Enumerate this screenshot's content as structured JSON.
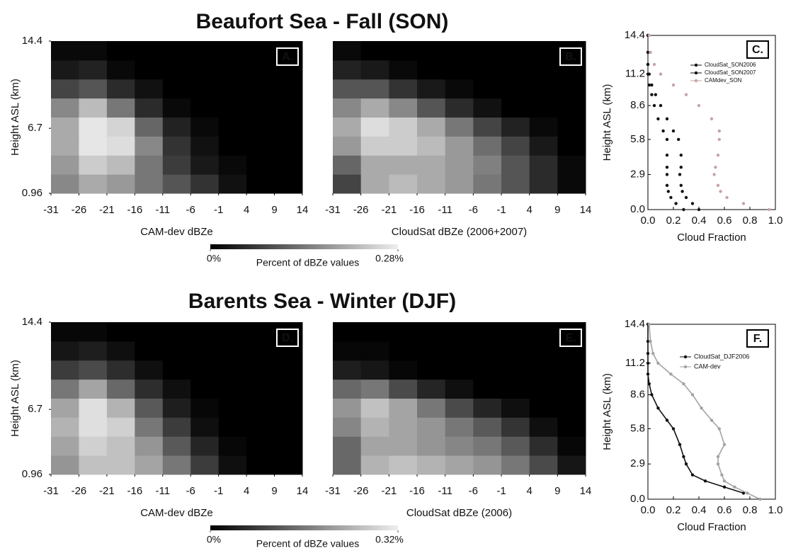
{
  "figure": {
    "rows": [
      {
        "title": "Beaufort Sea - Fall (SON)",
        "colorbar": {
          "label": "Percent of dBZe values",
          "ticks": [
            {
              "value": 0,
              "label": "0%"
            },
            {
              "value": 0.28,
              "label": "0.28%"
            }
          ]
        }
      },
      {
        "title": "Barents Sea - Winter (DJF)",
        "colorbar": {
          "label": "Percent of dBZe values",
          "ticks": [
            {
              "value": 0,
              "label": "0%"
            },
            {
              "value": 0.32,
              "label": "0.32%"
            }
          ]
        }
      }
    ]
  },
  "chart_data": [
    {
      "type": "heatmap",
      "panel": "A.",
      "xlabel": "CAM-dev dBZe",
      "ylabel": "Height ASL (km)",
      "xlim": [
        -31,
        14
      ],
      "xticks": [
        -31,
        -26,
        -21,
        -16,
        -11,
        -6,
        -1,
        4,
        9,
        14
      ],
      "ylim": [
        0.96,
        14.4
      ],
      "yticks": [
        0.96,
        6.7,
        14.4
      ],
      "zlim": [
        0,
        0.28
      ],
      "xbins": [
        -31,
        -26,
        -21,
        -16,
        -11,
        -6,
        -1,
        4,
        9,
        14
      ],
      "ybins": [
        0.96,
        2.64,
        4.32,
        6.0,
        7.68,
        9.36,
        11.04,
        12.72,
        14.4
      ],
      "z": [
        [
          0.16,
          0.2,
          0.18,
          0.14,
          0.1,
          0.06,
          0.02,
          0,
          0
        ],
        [
          0.18,
          0.24,
          0.22,
          0.14,
          0.07,
          0.03,
          0.01,
          0,
          0
        ],
        [
          0.2,
          0.27,
          0.26,
          0.16,
          0.06,
          0.02,
          0,
          0,
          0
        ],
        [
          0.2,
          0.27,
          0.25,
          0.12,
          0.04,
          0.01,
          0,
          0,
          0
        ],
        [
          0.16,
          0.22,
          0.14,
          0.05,
          0.01,
          0,
          0,
          0,
          0
        ],
        [
          0.08,
          0.1,
          0.05,
          0.02,
          0,
          0,
          0,
          0,
          0
        ],
        [
          0.03,
          0.04,
          0.01,
          0,
          0,
          0,
          0,
          0,
          0
        ],
        [
          0.01,
          0.01,
          0,
          0,
          0,
          0,
          0,
          0,
          0
        ]
      ]
    },
    {
      "type": "heatmap",
      "panel": "B.",
      "xlabel": "CloudSat dBZe (2006+2007)",
      "xlim": [
        -31,
        14
      ],
      "xticks": [
        -31,
        -26,
        -21,
        -16,
        -11,
        -6,
        -1,
        4,
        9,
        14
      ],
      "ylim": [
        0.96,
        14.4
      ],
      "zlim": [
        0,
        0.28
      ],
      "xbins": [
        -31,
        -26,
        -21,
        -16,
        -11,
        -6,
        -1,
        4,
        9,
        14
      ],
      "ybins": [
        0.96,
        2.64,
        4.32,
        6.0,
        7.68,
        9.36,
        11.04,
        12.72,
        14.4
      ],
      "z": [
        [
          0.08,
          0.2,
          0.22,
          0.2,
          0.18,
          0.14,
          0.1,
          0.05,
          0.01
        ],
        [
          0.12,
          0.2,
          0.2,
          0.2,
          0.18,
          0.15,
          0.1,
          0.05,
          0.01
        ],
        [
          0.18,
          0.24,
          0.24,
          0.22,
          0.18,
          0.13,
          0.08,
          0.03,
          0
        ],
        [
          0.2,
          0.26,
          0.24,
          0.2,
          0.14,
          0.08,
          0.04,
          0.01,
          0
        ],
        [
          0.16,
          0.2,
          0.16,
          0.1,
          0.05,
          0.02,
          0,
          0,
          0
        ],
        [
          0.1,
          0.1,
          0.06,
          0.03,
          0.01,
          0,
          0,
          0,
          0
        ],
        [
          0.04,
          0.03,
          0.01,
          0,
          0,
          0,
          0,
          0,
          0
        ],
        [
          0.01,
          0,
          0,
          0,
          0,
          0,
          0,
          0,
          0
        ]
      ]
    },
    {
      "type": "scatter",
      "panel": "C.",
      "xlabel": "Cloud Fraction",
      "ylabel": "Height ASL (km)",
      "legend": "upper right",
      "xlim": [
        0,
        1
      ],
      "xticks": [
        {
          "value": 0,
          "label": "0.0"
        },
        0.2,
        0.4,
        0.6,
        0.8,
        {
          "value": 1,
          "label": "1.0"
        }
      ],
      "ylim": [
        0,
        14.4
      ],
      "yticks": [
        {
          "value": 0,
          "label": "0.0"
        },
        2.9,
        5.8,
        8.6,
        11.2,
        14.4
      ],
      "heights": [
        0.0,
        0.5,
        1.0,
        1.5,
        2.0,
        2.9,
        3.5,
        4.5,
        5.8,
        6.5,
        7.5,
        8.6,
        9.5,
        10.3,
        11.2,
        12.0,
        13.0,
        14.4
      ],
      "series": [
        {
          "name": "CloudSat_SON2006",
          "color": "#111111",
          "values": [
            0.4,
            0.35,
            0.3,
            0.27,
            0.26,
            0.25,
            0.26,
            0.26,
            0.24,
            0.2,
            0.15,
            0.1,
            0.06,
            0.03,
            0.01,
            0,
            0,
            0
          ]
        },
        {
          "name": "CloudSat_SON2007",
          "color": "#111111",
          "values": [
            0.28,
            0.22,
            0.18,
            0.16,
            0.15,
            0.15,
            0.15,
            0.15,
            0.15,
            0.12,
            0.08,
            0.05,
            0.03,
            0.01,
            0,
            0,
            0,
            0
          ]
        },
        {
          "name": "CAMdev_SON",
          "color": "#c6a4a4",
          "values": [
            0.95,
            0.75,
            0.62,
            0.57,
            0.55,
            0.52,
            0.53,
            0.55,
            0.56,
            0.56,
            0.5,
            0.4,
            0.3,
            0.2,
            0.1,
            0.05,
            0.02,
            0.01
          ]
        }
      ]
    },
    {
      "type": "heatmap",
      "panel": "D.",
      "xlabel": "CAM-dev dBZe",
      "ylabel": "Height ASL (km)",
      "xlim": [
        -31,
        14
      ],
      "xticks": [
        -31,
        -26,
        -21,
        -16,
        -11,
        -6,
        -1,
        4,
        9,
        14
      ],
      "ylim": [
        0.96,
        14.4
      ],
      "yticks": [
        0.96,
        6.7,
        14.4
      ],
      "zlim": [
        0,
        0.32
      ],
      "xbins": [
        -31,
        -26,
        -21,
        -16,
        -11,
        -6,
        -1,
        4,
        9,
        14
      ],
      "ybins": [
        0.96,
        2.64,
        4.32,
        6.0,
        7.68,
        9.36,
        11.04,
        12.72,
        14.4
      ],
      "z": [
        [
          0.2,
          0.26,
          0.26,
          0.22,
          0.16,
          0.08,
          0.02,
          0,
          0
        ],
        [
          0.22,
          0.28,
          0.26,
          0.2,
          0.12,
          0.05,
          0.01,
          0,
          0
        ],
        [
          0.24,
          0.3,
          0.28,
          0.16,
          0.08,
          0.02,
          0,
          0,
          0
        ],
        [
          0.22,
          0.3,
          0.24,
          0.12,
          0.04,
          0.01,
          0,
          0,
          0
        ],
        [
          0.16,
          0.22,
          0.14,
          0.06,
          0.02,
          0,
          0,
          0,
          0
        ],
        [
          0.08,
          0.1,
          0.06,
          0.02,
          0,
          0,
          0,
          0,
          0
        ],
        [
          0.03,
          0.04,
          0.02,
          0,
          0,
          0,
          0,
          0,
          0
        ],
        [
          0.01,
          0.01,
          0,
          0,
          0,
          0,
          0,
          0,
          0
        ]
      ]
    },
    {
      "type": "heatmap",
      "panel": "E.",
      "xlabel": "CloudSat dBZe (2006)",
      "xlim": [
        -31,
        14
      ],
      "xticks": [
        -31,
        -26,
        -21,
        -16,
        -11,
        -6,
        -1,
        4,
        9,
        14
      ],
      "ylim": [
        0.96,
        14.4
      ],
      "zlim": [
        0,
        0.32
      ],
      "xbins": [
        -31,
        -26,
        -21,
        -16,
        -11,
        -6,
        -1,
        4,
        9,
        14
      ],
      "ybins": [
        0.96,
        2.64,
        4.32,
        6.0,
        7.68,
        9.36,
        11.04,
        12.72,
        14.4
      ],
      "z": [
        [
          0.14,
          0.24,
          0.26,
          0.24,
          0.22,
          0.2,
          0.16,
          0.1,
          0.03
        ],
        [
          0.14,
          0.22,
          0.22,
          0.2,
          0.18,
          0.16,
          0.12,
          0.06,
          0.01
        ],
        [
          0.18,
          0.24,
          0.22,
          0.2,
          0.16,
          0.12,
          0.07,
          0.02,
          0
        ],
        [
          0.2,
          0.26,
          0.22,
          0.16,
          0.1,
          0.05,
          0.02,
          0,
          0
        ],
        [
          0.14,
          0.16,
          0.1,
          0.05,
          0.02,
          0,
          0,
          0,
          0
        ],
        [
          0.04,
          0.03,
          0.01,
          0,
          0,
          0,
          0,
          0,
          0
        ],
        [
          0.01,
          0.01,
          0,
          0,
          0,
          0,
          0,
          0,
          0
        ],
        [
          0,
          0,
          0,
          0,
          0,
          0,
          0,
          0,
          0
        ]
      ]
    },
    {
      "type": "line",
      "panel": "F.",
      "xlabel": "Cloud Fraction",
      "ylabel": "Height ASL (km)",
      "legend": "upper right",
      "xlim": [
        0,
        1
      ],
      "xticks": [
        {
          "value": 0,
          "label": "0.0"
        },
        0.2,
        0.4,
        0.6,
        0.8,
        {
          "value": 1,
          "label": "1.0"
        }
      ],
      "ylim": [
        0,
        14.4
      ],
      "yticks": [
        {
          "value": 0,
          "label": "0.0"
        },
        2.9,
        5.8,
        8.6,
        11.2,
        14.4
      ],
      "heights": [
        0.0,
        0.5,
        1.0,
        1.5,
        2.0,
        2.9,
        3.5,
        4.5,
        5.8,
        6.5,
        7.5,
        8.6,
        9.5,
        10.3,
        11.2,
        12.0,
        13.0,
        14.4
      ],
      "series": [
        {
          "name": "CloudSat_DJF2006",
          "color": "#111111",
          "values": [
            null,
            0.75,
            0.6,
            0.45,
            0.35,
            0.3,
            0.28,
            0.25,
            0.2,
            0.15,
            0.08,
            0.03,
            0.01,
            0,
            0,
            0,
            0,
            0
          ]
        },
        {
          "name": "CAM-dev",
          "color": "#a3a3a3",
          "values": [
            0.88,
            0.78,
            0.68,
            0.6,
            0.58,
            0.55,
            0.55,
            0.6,
            0.56,
            0.5,
            0.42,
            0.35,
            0.28,
            0.18,
            0.08,
            0.04,
            0.02,
            0.01
          ]
        }
      ]
    }
  ]
}
